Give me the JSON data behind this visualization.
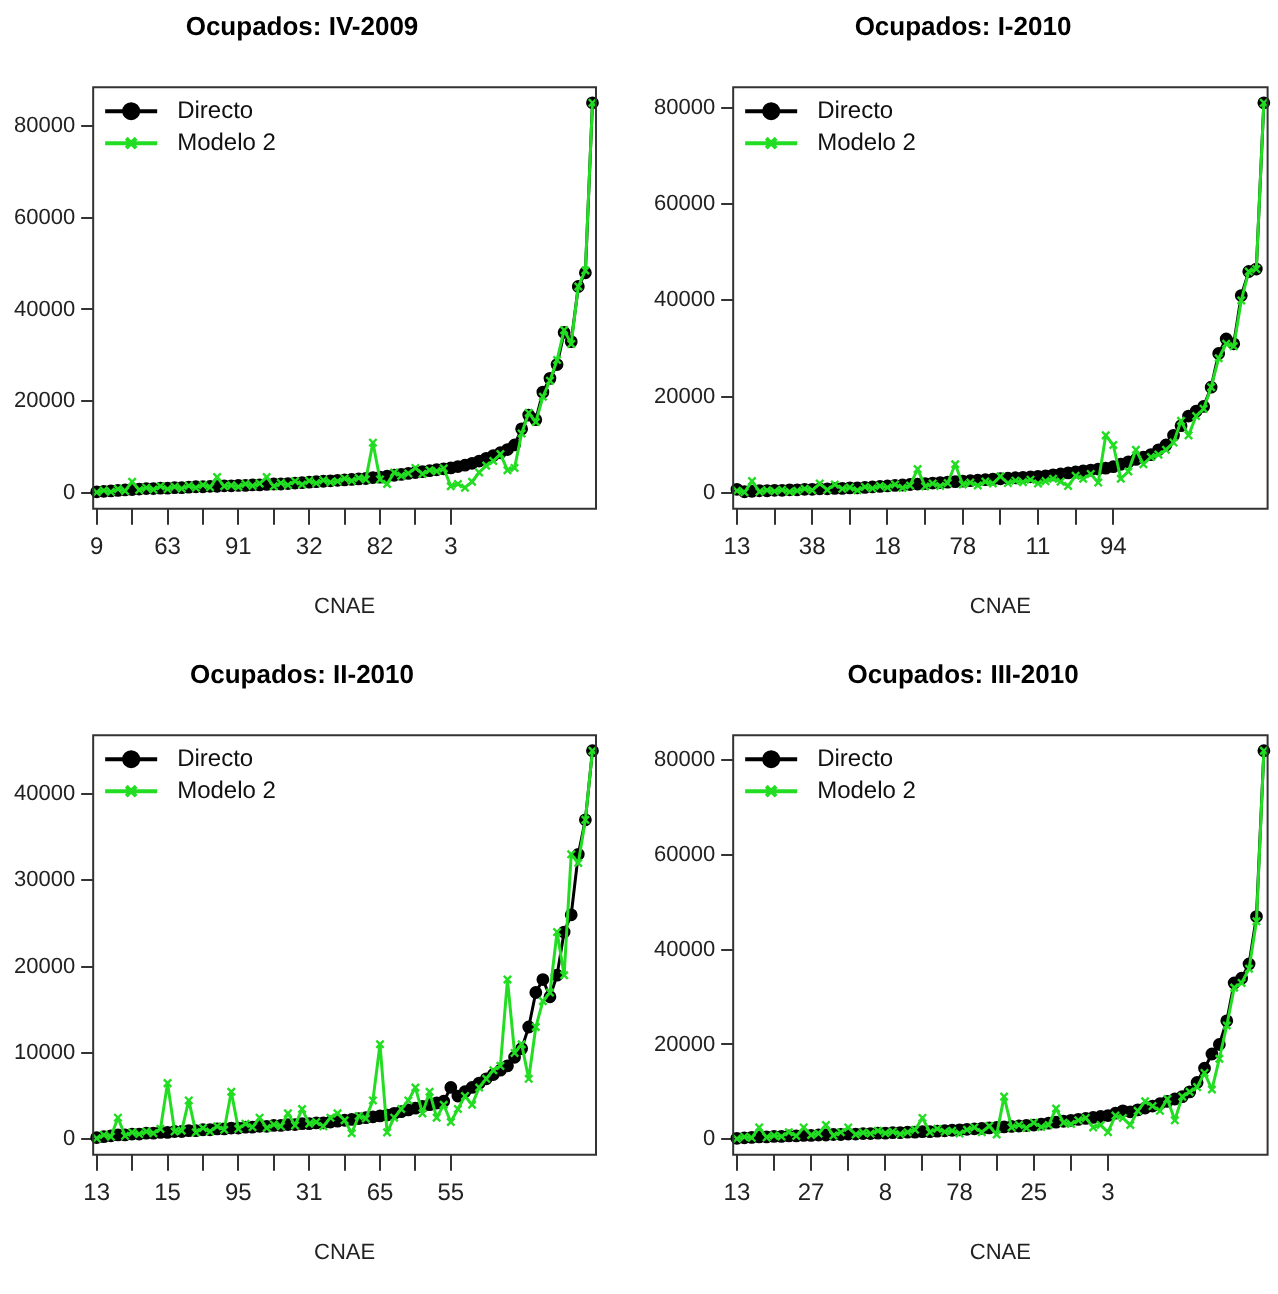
{
  "chart_data": [
    {
      "type": "line",
      "title": "Ocupados: IV-2009",
      "xlabel": "CNAE",
      "legend": "top left",
      "grid": false,
      "ylim": [
        -3400,
        88400
      ],
      "yticks": [
        0,
        20000,
        40000,
        60000,
        80000
      ],
      "categories": [
        "9",
        null,
        null,
        null,
        null,
        null,
        null,
        null,
        null,
        null,
        "63",
        null,
        null,
        null,
        null,
        null,
        null,
        null,
        null,
        null,
        "91",
        null,
        null,
        null,
        null,
        null,
        null,
        null,
        null,
        null,
        "32",
        null,
        null,
        null,
        null,
        null,
        null,
        null,
        null,
        null,
        "82",
        null,
        null,
        null,
        null,
        null,
        null,
        null,
        null,
        null,
        "3",
        null,
        null,
        null,
        null,
        null,
        null,
        null,
        null,
        null,
        null,
        null,
        null,
        null,
        null,
        null,
        null,
        null,
        null,
        null,
        null
      ],
      "series": [
        {
          "name": "Directo",
          "color": "#000000",
          "marker": "circle",
          "values": [
            300,
            400,
            500,
            600,
            700,
            800,
            900,
            1000,
            1000,
            1100,
            1100,
            1200,
            1200,
            1300,
            1400,
            1400,
            1500,
            1500,
            1600,
            1600,
            1700,
            1700,
            1800,
            1800,
            1900,
            2000,
            2000,
            2100,
            2200,
            2300,
            2400,
            2500,
            2600,
            2700,
            2800,
            2900,
            3000,
            3100,
            3200,
            3400,
            3500,
            3700,
            3900,
            4100,
            4300,
            4500,
            4700,
            4900,
            5100,
            5300,
            5500,
            5800,
            6100,
            6500,
            7000,
            7600,
            8200,
            8800,
            9500,
            10500,
            14000,
            17000,
            16000,
            22000,
            25000,
            28000,
            35000,
            33000,
            45000,
            48000,
            85000
          ]
        },
        {
          "name": "Modelo 2",
          "color": "#22dd22",
          "marker": "cross",
          "values": [
            200,
            600,
            300,
            900,
            500,
            2500,
            700,
            1200,
            800,
            1500,
            900,
            1400,
            1000,
            1600,
            1200,
            1800,
            1300,
            3500,
            1500,
            1700,
            1400,
            2000,
            1600,
            2100,
            3500,
            1500,
            2200,
            1800,
            2600,
            1900,
            2700,
            2200,
            2800,
            2400,
            2600,
            3200,
            2700,
            3300,
            3000,
            11000,
            3000,
            2000,
            4500,
            3800,
            4300,
            5500,
            4200,
            5000,
            4800,
            5400,
            1500,
            2000,
            1200,
            2500,
            4500,
            6000,
            7000,
            8500,
            5000,
            5500,
            13000,
            17500,
            15500,
            21000,
            24500,
            29000,
            35500,
            32500,
            45000,
            48500,
            85000
          ]
        }
      ]
    },
    {
      "type": "line",
      "title": "Ocupados: I-2010",
      "xlabel": "CNAE",
      "legend": "top left",
      "grid": false,
      "ylim": [
        -3240,
        84240
      ],
      "yticks": [
        0,
        20000,
        40000,
        60000,
        80000
      ],
      "categories": [
        "13",
        null,
        null,
        null,
        null,
        null,
        null,
        null,
        null,
        null,
        "38",
        null,
        null,
        null,
        null,
        null,
        null,
        null,
        null,
        null,
        "18",
        null,
        null,
        null,
        null,
        null,
        null,
        null,
        null,
        null,
        "78",
        null,
        null,
        null,
        null,
        null,
        null,
        null,
        null,
        null,
        "11",
        null,
        null,
        null,
        null,
        null,
        null,
        null,
        null,
        null,
        "94",
        null,
        null,
        null,
        null,
        null,
        null,
        null,
        null,
        null,
        null,
        null,
        null,
        null,
        null,
        null,
        null,
        null,
        null,
        null,
        null
      ],
      "series": [
        {
          "name": "Directo",
          "color": "#000000",
          "marker": "circle",
          "values": [
            800,
            300,
            400,
            500,
            500,
            600,
            600,
            700,
            700,
            800,
            800,
            900,
            900,
            1000,
            1000,
            1100,
            1100,
            1200,
            1300,
            1400,
            1500,
            1600,
            1700,
            1800,
            1900,
            2000,
            2100,
            2200,
            2300,
            2400,
            2500,
            2600,
            2700,
            2800,
            2900,
            3000,
            3100,
            3200,
            3300,
            3400,
            3500,
            3600,
            3800,
            4000,
            4200,
            4400,
            4600,
            4800,
            5000,
            5200,
            5500,
            6000,
            6500,
            7000,
            7500,
            8000,
            9000,
            10000,
            12000,
            14000,
            16000,
            17000,
            18000,
            22000,
            29000,
            32000,
            31000,
            41000,
            46000,
            46500,
            81000
          ]
        },
        {
          "name": "Modelo 2",
          "color": "#22dd22",
          "marker": "cross",
          "values": [
            500,
            200,
            2500,
            300,
            600,
            400,
            700,
            300,
            500,
            900,
            600,
            2000,
            700,
            1800,
            900,
            1200,
            600,
            1300,
            1000,
            1500,
            1200,
            1800,
            1100,
            1600,
            5000,
            1400,
            2000,
            1500,
            2100,
            6000,
            1800,
            2200,
            1600,
            2400,
            2000,
            3500,
            2100,
            2600,
            2300,
            2800,
            2000,
            2500,
            3000,
            2400,
            1500,
            3600,
            3000,
            4000,
            2200,
            12000,
            10000,
            3000,
            4500,
            9000,
            6000,
            7500,
            8000,
            9000,
            10500,
            15000,
            12000,
            16000,
            17500,
            22000,
            28000,
            31000,
            30500,
            40000,
            46000,
            46500,
            81000
          ]
        }
      ]
    },
    {
      "type": "line",
      "title": "Ocupados: II-2010",
      "xlabel": "CNAE",
      "legend": "top left",
      "grid": false,
      "ylim": [
        -1800,
        46800
      ],
      "yticks": [
        0,
        10000,
        20000,
        30000,
        40000
      ],
      "categories": [
        "13",
        null,
        null,
        null,
        null,
        null,
        null,
        null,
        null,
        null,
        "15",
        null,
        null,
        null,
        null,
        null,
        null,
        null,
        null,
        null,
        "95",
        null,
        null,
        null,
        null,
        null,
        null,
        null,
        null,
        null,
        "31",
        null,
        null,
        null,
        null,
        null,
        null,
        null,
        null,
        null,
        "65",
        null,
        null,
        null,
        null,
        null,
        null,
        null,
        null,
        null,
        "55",
        null,
        null,
        null,
        null,
        null,
        null,
        null,
        null,
        null,
        null,
        null,
        null,
        null,
        null,
        null,
        null,
        null,
        null,
        null,
        null
      ],
      "series": [
        {
          "name": "Directo",
          "color": "#000000",
          "marker": "circle",
          "values": [
            200,
            300,
            400,
            500,
            500,
            600,
            600,
            700,
            700,
            800,
            800,
            900,
            900,
            1000,
            1000,
            1100,
            1100,
            1200,
            1200,
            1300,
            1300,
            1400,
            1400,
            1500,
            1500,
            1600,
            1600,
            1700,
            1700,
            1800,
            1800,
            1900,
            1900,
            2000,
            2100,
            2200,
            2300,
            2400,
            2500,
            2600,
            2700,
            2800,
            3000,
            3200,
            3400,
            3600,
            3800,
            4000,
            4200,
            4400,
            6000,
            5000,
            5500,
            6000,
            6500,
            7000,
            7500,
            8000,
            8500,
            9500,
            10500,
            13000,
            17000,
            18500,
            16500,
            19000,
            24000,
            26000,
            33000,
            37000,
            45000
          ]
        },
        {
          "name": "Modelo 2",
          "color": "#22dd22",
          "marker": "cross",
          "values": [
            100,
            500,
            300,
            2500,
            400,
            800,
            600,
            900,
            700,
            1200,
            6500,
            900,
            1000,
            4500,
            800,
            1300,
            900,
            1500,
            1100,
            5500,
            1200,
            1800,
            1400,
            2500,
            1300,
            1700,
            1500,
            3000,
            1600,
            3500,
            1800,
            2000,
            1500,
            2500,
            3000,
            2200,
            700,
            2700,
            2400,
            4500,
            11000,
            800,
            2500,
            3500,
            4500,
            6000,
            3000,
            5500,
            2500,
            4000,
            2000,
            3500,
            5000,
            4000,
            6000,
            7000,
            8000,
            8500,
            18500,
            10000,
            11000,
            7000,
            13000,
            16000,
            17000,
            24000,
            19000,
            33000,
            32000,
            37000,
            45000
          ]
        }
      ]
    },
    {
      "type": "line",
      "title": "Ocupados: III-2010",
      "xlabel": "CNAE",
      "legend": "top left",
      "grid": false,
      "ylim": [
        -3280,
        85280
      ],
      "yticks": [
        0,
        20000,
        40000,
        60000,
        80000
      ],
      "categories": [
        "13",
        null,
        null,
        null,
        null,
        null,
        null,
        null,
        null,
        null,
        "27",
        null,
        null,
        null,
        null,
        null,
        null,
        null,
        null,
        null,
        "8",
        null,
        null,
        null,
        null,
        null,
        null,
        null,
        null,
        null,
        "78",
        null,
        null,
        null,
        null,
        null,
        null,
        null,
        null,
        null,
        "25",
        null,
        null,
        null,
        null,
        null,
        null,
        null,
        null,
        null,
        "3",
        null,
        null,
        null,
        null,
        null,
        null,
        null,
        null,
        null,
        null,
        null,
        null,
        null,
        null,
        null,
        null,
        null,
        null,
        null,
        null,
        null
      ],
      "series": [
        {
          "name": "Directo",
          "color": "#000000",
          "marker": "circle",
          "values": [
            200,
            300,
            400,
            500,
            500,
            600,
            600,
            700,
            700,
            800,
            800,
            900,
            900,
            1000,
            1000,
            1100,
            1100,
            1200,
            1200,
            1300,
            1300,
            1400,
            1400,
            1500,
            1500,
            1600,
            1600,
            1700,
            1800,
            1900,
            2000,
            2100,
            2200,
            2300,
            2400,
            2500,
            2600,
            2700,
            2800,
            2900,
            3000,
            3200,
            3400,
            3600,
            3800,
            4000,
            4200,
            4400,
            4600,
            4800,
            5000,
            5500,
            6000,
            5800,
            6200,
            6600,
            7000,
            7500,
            8000,
            8500,
            9000,
            10000,
            12000,
            15000,
            18000,
            20000,
            25000,
            33000,
            34000,
            37000,
            47000,
            82000
          ]
        },
        {
          "name": "Modelo 2",
          "color": "#22dd22",
          "marker": "cross",
          "values": [
            100,
            500,
            300,
            2500,
            400,
            800,
            600,
            1500,
            700,
            2500,
            900,
            1200,
            3000,
            800,
            1500,
            2500,
            1000,
            1400,
            1200,
            1800,
            1300,
            1600,
            1100,
            1500,
            2000,
            4500,
            1500,
            2200,
            1600,
            1800,
            1200,
            2000,
            2500,
            1500,
            2800,
            1000,
            9000,
            2500,
            3000,
            2400,
            3500,
            2600,
            3000,
            6500,
            3500,
            3200,
            4000,
            4500,
            2500,
            3000,
            1500,
            5000,
            4500,
            3000,
            6000,
            8000,
            7000,
            6000,
            8500,
            4000,
            9000,
            10000,
            11000,
            14000,
            10500,
            17000,
            24000,
            32000,
            33000,
            36000,
            46000,
            82000
          ]
        }
      ]
    }
  ]
}
